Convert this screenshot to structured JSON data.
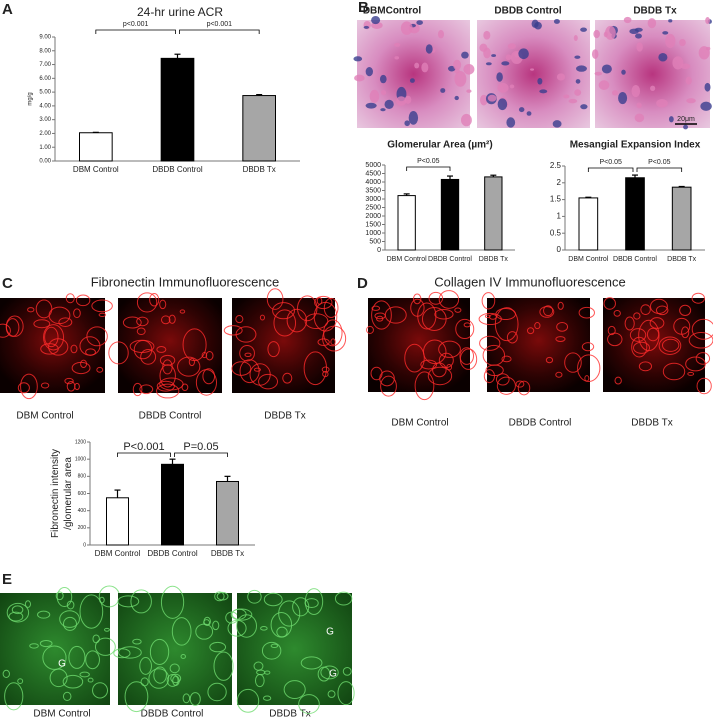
{
  "panel_labels": [
    "A",
    "B",
    "C",
    "D",
    "E"
  ],
  "B": {
    "captions": [
      "DBMControl",
      "DBDB Control",
      "DBDB Tx"
    ],
    "scale_bar": "20μm"
  },
  "C": {
    "title": "Fibronectin Immunofluorescence",
    "captions": [
      "DBM  Control",
      "DBDB Control",
      "DBDB Tx"
    ]
  },
  "D": {
    "title": "Collagen IV Immunofluorescence",
    "captions": [
      "DBM Control",
      "DBDB Control",
      "DBDB Tx"
    ]
  },
  "E": {
    "captions": [
      "DBM Control",
      "DBDB Control",
      "DBDB Tx"
    ],
    "image_marks": [
      "G",
      "G",
      "G"
    ]
  },
  "chart_data": [
    {
      "type": "bar",
      "title": "24-hr urine ACR",
      "ylabel": [
        "mg/g"
      ],
      "categories": [
        "DBM Control",
        "DBDB Control",
        "DBDB Tx"
      ],
      "values": [
        2.05,
        7.45,
        4.75
      ],
      "errors": [
        0.03,
        0.3,
        0.07
      ],
      "colors": [
        "#ffffff",
        "#000000",
        "#a6a6a6"
      ],
      "ylim": [
        0,
        9
      ],
      "yticks": [
        {
          "value": 0,
          "label": "0.00"
        },
        {
          "value": 1,
          "label": "1.00"
        },
        {
          "value": 2,
          "label": "2.00"
        },
        {
          "value": 3,
          "label": "3.00"
        },
        {
          "value": 4,
          "label": "4.00"
        },
        {
          "value": 5,
          "label": "5.00"
        },
        {
          "value": 6,
          "label": "6.00"
        },
        {
          "value": 7,
          "label": "7.00"
        },
        {
          "value": 8,
          "label": "8.00"
        },
        {
          "value": 9,
          "label": "9.00"
        }
      ],
      "annotations": [
        "p<0.001",
        "p<0.001"
      ]
    },
    {
      "type": "bar",
      "title": "Glomerular Area (µm²)",
      "categories": [
        "DBM Control",
        "DBDB Control",
        "DBDB Tx"
      ],
      "values": [
        3200,
        4150,
        4300
      ],
      "errors": [
        100,
        200,
        100
      ],
      "colors": [
        "#ffffff",
        "#000000",
        "#a6a6a6"
      ],
      "ylim": [
        0,
        5000
      ],
      "yticks": [
        0,
        500,
        1000,
        1500,
        2000,
        2500,
        3000,
        3500,
        4000,
        4500,
        5000
      ],
      "annotations": [
        "P<0.05"
      ]
    },
    {
      "type": "bar",
      "title": "Mesangial Expansion Index",
      "categories": [
        "DBM Control",
        "DBDB Control",
        "DBDB Tx"
      ],
      "values": [
        1.55,
        2.15,
        1.87
      ],
      "errors": [
        0.02,
        0.08,
        0.02
      ],
      "colors": [
        "#ffffff",
        "#000000",
        "#a6a6a6"
      ],
      "ylim": [
        0,
        2.5
      ],
      "yticks": [
        0,
        0.5,
        1,
        1.5,
        2,
        2.5
      ],
      "annotations": [
        "P<0.05",
        "P<0.05"
      ]
    },
    {
      "type": "bar",
      "ylabel": [
        "Fibronectin intensity",
        "/glomerular area"
      ],
      "categories": [
        "DBM Control",
        "DBDB Control",
        "DBDB Tx"
      ],
      "values": [
        550,
        940,
        740
      ],
      "errors": [
        90,
        60,
        60
      ],
      "colors": [
        "#ffffff",
        "#000000",
        "#a6a6a6"
      ],
      "ylim": [
        0,
        1200
      ],
      "yticks": [
        0,
        200,
        400,
        600,
        800,
        1000,
        1200
      ],
      "annotations": [
        "P<0.001",
        "P=0.05"
      ]
    }
  ]
}
